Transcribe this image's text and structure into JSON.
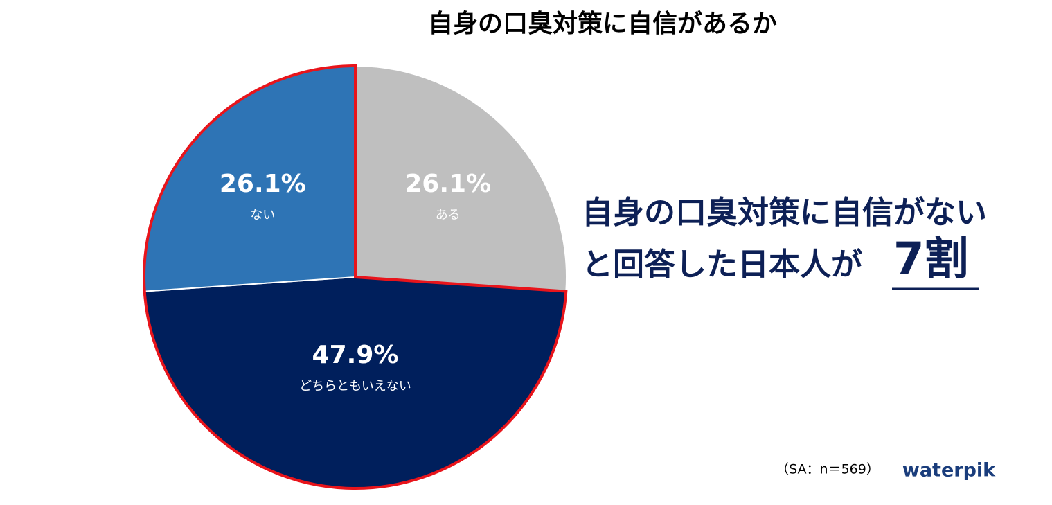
{
  "chart_data": {
    "type": "pie",
    "title": "自身の口臭対策に自信があるか",
    "categories": [
      "ある",
      "どちらともいえない",
      "ない"
    ],
    "values": [
      26.1,
      47.9,
      26.1
    ],
    "value_labels": [
      "26.1%",
      "47.9%",
      "26.1%"
    ],
    "colors": [
      "#bfbfbf",
      "#001f5c",
      "#2e74b5"
    ],
    "annotation": [
      "自身の口臭対策に自信がない",
      "と回答した日本人が",
      "7割"
    ],
    "note": "（SA：n＝569）",
    "logo": "waterpik"
  }
}
